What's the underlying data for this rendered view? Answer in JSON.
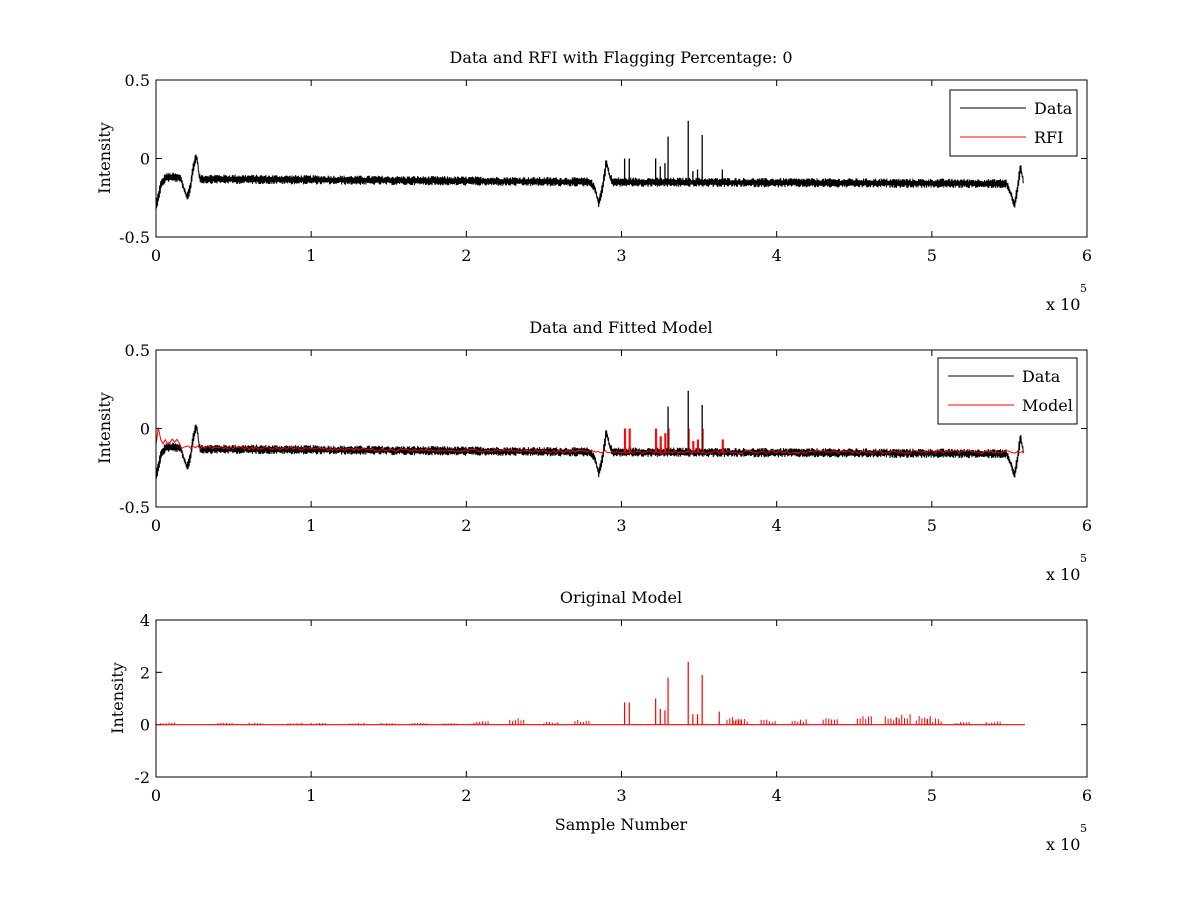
{
  "chart_data": [
    {
      "type": "line",
      "title": "Data and RFI with Flagging Percentage: 0",
      "xlabel": "",
      "ylabel": "Intensity",
      "xlim": [
        0,
        600000
      ],
      "ylim": [
        -0.5,
        0.5
      ],
      "xticks": [
        0,
        100000,
        200000,
        300000,
        400000,
        500000,
        600000
      ],
      "xtick_labels": [
        "0",
        "1",
        "2",
        "3",
        "4",
        "5",
        "6"
      ],
      "yticks": [
        -0.5,
        0,
        0.5
      ],
      "ytick_labels": [
        "-0.5",
        "0",
        "0.5"
      ],
      "x_exponent_label": "x 10",
      "x_exponent_power": "5",
      "grid": false,
      "legend_position": "top-right",
      "legend": [
        "Data",
        "RFI"
      ],
      "baseline_segments": [
        {
          "x": [
            0,
            3000,
            6000,
            12000,
            16000,
            18000,
            20000,
            22000,
            24000,
            26000,
            28000,
            280000,
            283000,
            285000,
            287000,
            289000,
            290000,
            292000,
            294000,
            548000,
            551000,
            553000,
            555000,
            557000,
            559000
          ],
          "y": [
            -0.3,
            -0.17,
            -0.12,
            -0.12,
            -0.13,
            -0.2,
            -0.25,
            -0.18,
            -0.05,
            0.02,
            -0.13,
            -0.15,
            -0.2,
            -0.28,
            -0.22,
            -0.1,
            -0.02,
            -0.1,
            -0.15,
            -0.16,
            -0.23,
            -0.3,
            -0.2,
            -0.05,
            -0.15
          ]
        }
      ],
      "noise_amplitude": 0.03,
      "spikes": [
        {
          "x": 302000,
          "y": 0.0
        },
        {
          "x": 305000,
          "y": 0.0
        },
        {
          "x": 322000,
          "y": 0.0
        },
        {
          "x": 325000,
          "y": -0.05
        },
        {
          "x": 328000,
          "y": -0.03
        },
        {
          "x": 330000,
          "y": 0.14
        },
        {
          "x": 343000,
          "y": 0.24
        },
        {
          "x": 346000,
          "y": -0.08
        },
        {
          "x": 349000,
          "y": -0.07
        },
        {
          "x": 352000,
          "y": 0.15
        },
        {
          "x": 365000,
          "y": -0.07
        }
      ],
      "series": [
        {
          "name": "Data",
          "color": "#000000"
        },
        {
          "name": "RFI",
          "color": "#ff0000"
        }
      ]
    },
    {
      "type": "line",
      "title": "Data and Fitted Model",
      "xlabel": "",
      "ylabel": "Intensity",
      "xlim": [
        0,
        600000
      ],
      "ylim": [
        -0.5,
        0.5
      ],
      "xticks": [
        0,
        100000,
        200000,
        300000,
        400000,
        500000,
        600000
      ],
      "xtick_labels": [
        "0",
        "1",
        "2",
        "3",
        "4",
        "5",
        "6"
      ],
      "yticks": [
        -0.5,
        0,
        0.5
      ],
      "ytick_labels": [
        "-0.5",
        "0",
        "0.5"
      ],
      "x_exponent_label": "x 10",
      "x_exponent_power": "5",
      "grid": false,
      "legend_position": "top-right",
      "legend": [
        "Data",
        "Model"
      ],
      "model_line": {
        "x": [
          0,
          1000,
          2000,
          4000,
          6000,
          8000,
          10000,
          12000,
          14000,
          16000,
          30000,
          100000,
          200000,
          300000,
          400000,
          500000,
          560000
        ],
        "y": [
          -0.1,
          0.05,
          -0.05,
          -0.1,
          -0.08,
          -0.1,
          -0.07,
          -0.09,
          -0.07,
          -0.12,
          -0.12,
          -0.13,
          -0.14,
          -0.15,
          -0.15,
          -0.15,
          -0.15
        ]
      },
      "series": [
        {
          "name": "Data",
          "color": "#000000"
        },
        {
          "name": "Model",
          "color": "#ff0000"
        }
      ]
    },
    {
      "type": "line",
      "title": "Original Model",
      "xlabel": "Sample Number",
      "ylabel": "Intensity",
      "xlim": [
        0,
        600000
      ],
      "ylim": [
        -2,
        4
      ],
      "xticks": [
        0,
        100000,
        200000,
        300000,
        400000,
        500000,
        600000
      ],
      "xtick_labels": [
        "0",
        "1",
        "2",
        "3",
        "4",
        "5",
        "6"
      ],
      "yticks": [
        -2,
        0,
        2,
        4
      ],
      "ytick_labels": [
        "-2",
        "0",
        "2",
        "4"
      ],
      "x_exponent_label": "x 10",
      "x_exponent_power": "5",
      "grid": false,
      "baseline": 0,
      "x_end": 560000,
      "big_spikes": [
        {
          "x": 302000,
          "y": 0.85
        },
        {
          "x": 305000,
          "y": 0.85
        },
        {
          "x": 322000,
          "y": 1.0
        },
        {
          "x": 325000,
          "y": 0.6
        },
        {
          "x": 328000,
          "y": 0.55
        },
        {
          "x": 330000,
          "y": 1.8
        },
        {
          "x": 343000,
          "y": 2.4
        },
        {
          "x": 346000,
          "y": 0.4
        },
        {
          "x": 349000,
          "y": 0.4
        },
        {
          "x": 352000,
          "y": 1.9
        },
        {
          "x": 363000,
          "y": 0.5
        }
      ],
      "small_clusters": [
        {
          "x": 3000,
          "y": 0.1
        },
        {
          "x": 40000,
          "y": 0.08
        },
        {
          "x": 60000,
          "y": 0.08
        },
        {
          "x": 85000,
          "y": 0.08
        },
        {
          "x": 100000,
          "y": 0.08
        },
        {
          "x": 125000,
          "y": 0.08
        },
        {
          "x": 145000,
          "y": 0.08
        },
        {
          "x": 165000,
          "y": 0.08
        },
        {
          "x": 185000,
          "y": 0.08
        },
        {
          "x": 205000,
          "y": 0.15
        },
        {
          "x": 228000,
          "y": 0.25
        },
        {
          "x": 250000,
          "y": 0.12
        },
        {
          "x": 270000,
          "y": 0.2
        },
        {
          "x": 368000,
          "y": 0.3
        },
        {
          "x": 372000,
          "y": 0.25
        },
        {
          "x": 390000,
          "y": 0.2
        },
        {
          "x": 410000,
          "y": 0.25
        },
        {
          "x": 430000,
          "y": 0.3
        },
        {
          "x": 452000,
          "y": 0.35
        },
        {
          "x": 470000,
          "y": 0.35
        },
        {
          "x": 477000,
          "y": 0.4
        },
        {
          "x": 490000,
          "y": 0.35
        },
        {
          "x": 497000,
          "y": 0.25
        },
        {
          "x": 515000,
          "y": 0.12
        },
        {
          "x": 535000,
          "y": 0.12
        }
      ],
      "series": [
        {
          "name": "",
          "color": "#ff0000"
        }
      ]
    }
  ]
}
